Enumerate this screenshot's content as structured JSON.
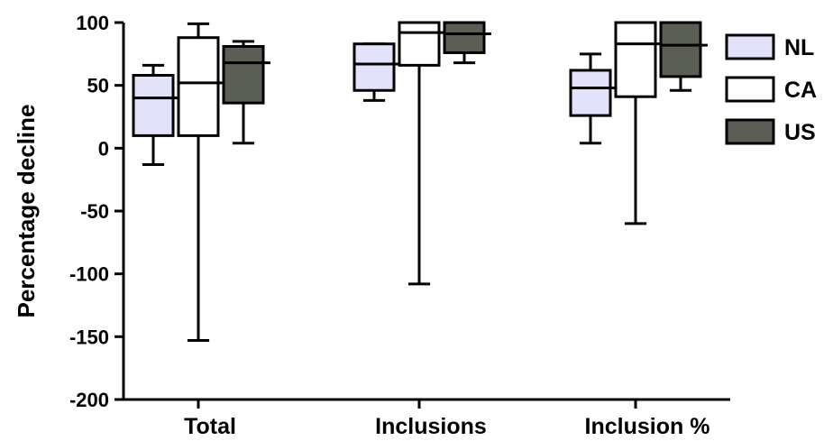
{
  "chart_data": {
    "type": "boxplot",
    "ylabel": "Percentage decline",
    "ylim": [
      -200,
      100
    ],
    "yticks": [
      -200,
      -150,
      -100,
      -50,
      0,
      50,
      100
    ],
    "categories": [
      "Total",
      "Inclusions",
      "Inclusion %"
    ],
    "legend_position": "right",
    "series": [
      {
        "name": "NL",
        "color": "#e2e2fa",
        "boxes": [
          {
            "min": -13,
            "q1": 10,
            "median": 40,
            "q3": 58,
            "max": 66
          },
          {
            "min": 38,
            "q1": 46,
            "median": 67,
            "q3": 83,
            "max": 83
          },
          {
            "min": 4,
            "q1": 26,
            "median": 48,
            "q3": 62,
            "max": 75
          }
        ]
      },
      {
        "name": "CA",
        "color": "#ffffff",
        "boxes": [
          {
            "min": -153,
            "q1": 10,
            "median": 52,
            "q3": 88,
            "max": 99
          },
          {
            "min": -108,
            "q1": 66,
            "median": 92,
            "q3": 100,
            "max": 100
          },
          {
            "min": -60,
            "q1": 41,
            "median": 83,
            "q3": 100,
            "max": 100
          }
        ]
      },
      {
        "name": "US",
        "color": "#5a5e55",
        "boxes": [
          {
            "min": 4,
            "q1": 36,
            "median": 68,
            "q3": 81,
            "max": 85
          },
          {
            "min": 68,
            "q1": 76,
            "median": 91,
            "q3": 100,
            "max": 100
          },
          {
            "min": 46,
            "q1": 57,
            "median": 82,
            "q3": 100,
            "max": 100
          }
        ]
      }
    ]
  }
}
